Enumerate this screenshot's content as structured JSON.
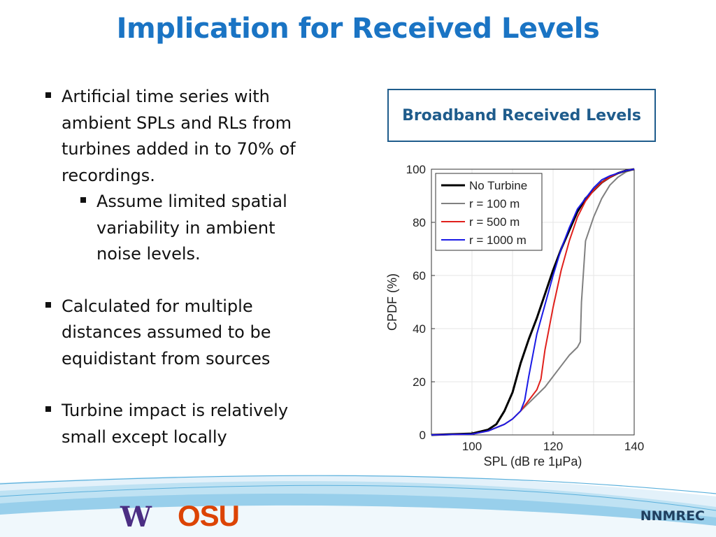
{
  "slide": {
    "title": "Implication for Received Levels",
    "bullets": {
      "b1": [
        "Artificial time series with",
        "ambient SPLs and RLs from",
        "turbines added in to 70% of",
        "recordings."
      ],
      "b1_sub": [
        "Assume limited spatial",
        "variability in ambient",
        "noise levels."
      ],
      "b2": [
        "Calculated for multiple",
        "distances assumed to be",
        "equidistant from sources"
      ],
      "b3": [
        "Turbine impact is relatively",
        "small except locally"
      ]
    },
    "caption": "Broadband Received Levels",
    "footer": {
      "brand": "NNMREC",
      "logo_uw": "W",
      "logo_osu": "OSU"
    }
  },
  "colors": {
    "title": "#1a74c4",
    "caption": "#1f5c8c",
    "uw": "#4b2e83",
    "osu": "#dc4405"
  },
  "chart_data": {
    "type": "line",
    "xlabel": "SPL (dB re 1μPa)",
    "ylabel": "CPDF (%)",
    "xlim": [
      90,
      140
    ],
    "ylim": [
      0,
      100
    ],
    "xticks": [
      "100",
      "120",
      "140"
    ],
    "yticks": [
      "0",
      "20",
      "40",
      "60",
      "80",
      "100"
    ],
    "grid": true,
    "legend_position": "top-left",
    "series": [
      {
        "name": "No Turbine",
        "color": "#000000",
        "width": 3,
        "x": [
          90,
          100,
          104,
          106,
          108,
          110,
          112,
          114,
          116,
          118,
          120,
          122,
          124,
          126,
          128,
          130,
          132,
          134,
          136,
          138,
          140
        ],
        "y": [
          0,
          0.5,
          2,
          4,
          9,
          16,
          27,
          36,
          44,
          53,
          62,
          70,
          77,
          84,
          89,
          92,
          95,
          97,
          98.5,
          99.5,
          100
        ]
      },
      {
        "name": "r = 100 m",
        "color": "#808080",
        "width": 2,
        "x": [
          90,
          100,
          104,
          108,
          110,
          112,
          114,
          116,
          118,
          120,
          122,
          124,
          126,
          126.7,
          127,
          128,
          130,
          132,
          134,
          136,
          138,
          140
        ],
        "y": [
          0,
          0.3,
          1.5,
          4,
          6,
          9,
          12,
          15,
          18,
          22,
          26,
          30,
          33,
          35,
          50,
          73,
          82,
          89,
          94,
          97,
          99,
          100
        ]
      },
      {
        "name": "r = 500 m",
        "color": "#e0201c",
        "width": 2,
        "x": [
          90,
          100,
          104,
          108,
          110,
          112,
          114,
          116,
          117,
          118,
          120,
          122,
          124,
          126,
          128,
          130,
          132,
          134,
          136,
          138,
          140
        ],
        "y": [
          0,
          0.3,
          1.5,
          4,
          6,
          9,
          13,
          17,
          21,
          32,
          48,
          62,
          73,
          82,
          88,
          92,
          95,
          97,
          98.5,
          99.5,
          100
        ]
      },
      {
        "name": "r = 1000 m",
        "color": "#1a1ae6",
        "width": 2,
        "x": [
          90,
          100,
          104,
          108,
          110,
          112,
          113,
          114,
          115,
          116,
          118,
          120,
          122,
          124,
          126,
          128,
          130,
          132,
          134,
          136,
          138,
          140
        ],
        "y": [
          0,
          0.3,
          1.5,
          4,
          6,
          9,
          13,
          22,
          30,
          38,
          49,
          60,
          70,
          78,
          85,
          89,
          93,
          96,
          97.5,
          98.5,
          99.5,
          100
        ]
      }
    ]
  }
}
